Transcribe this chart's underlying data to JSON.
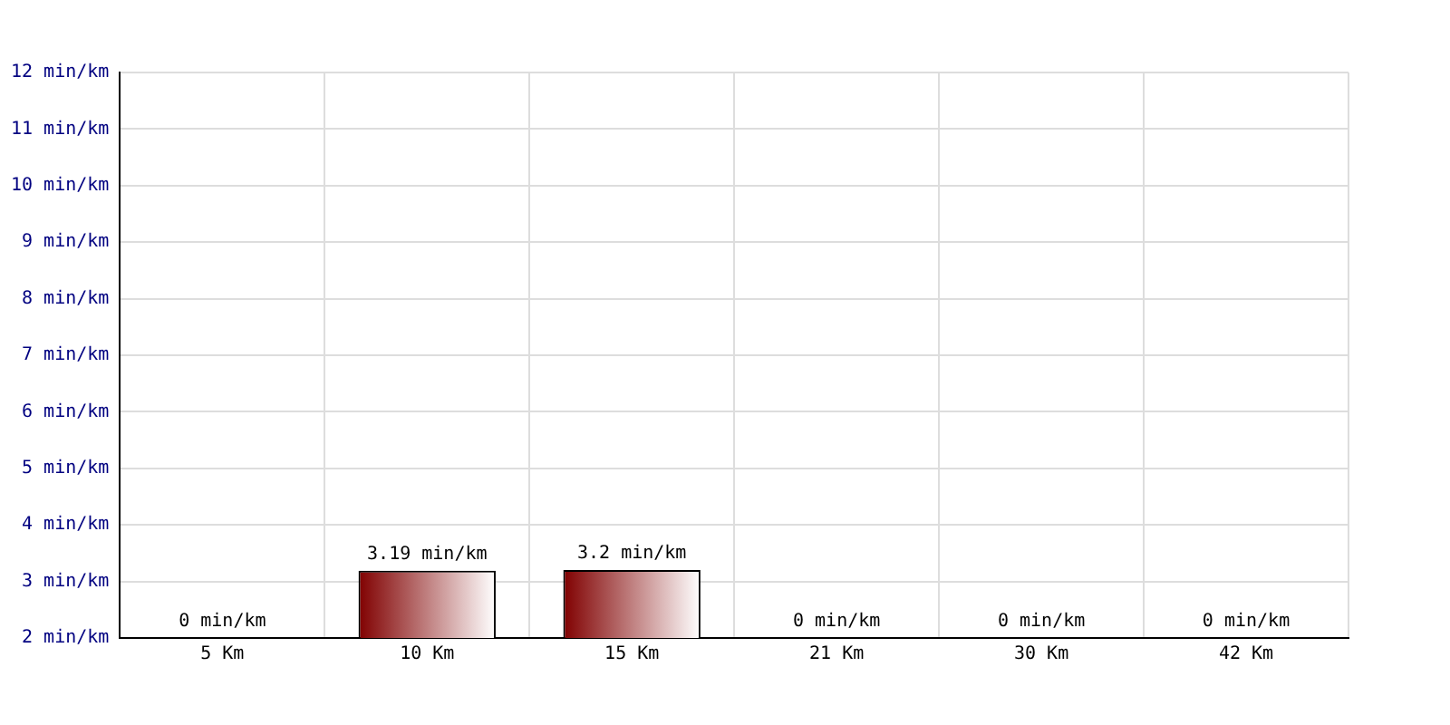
{
  "chart_data": {
    "type": "bar",
    "categories": [
      "5 Km",
      "10 Km",
      "15 Km",
      "21 Km",
      "30 Km",
      "42 Km"
    ],
    "values": [
      null,
      3.19,
      3.2,
      null,
      null,
      null
    ],
    "value_labels": [
      "0 min/km",
      "3.19 min/km",
      "3.2 min/km",
      "0 min/km",
      "0 min/km",
      "0 min/km"
    ],
    "color": "#800000",
    "ylim": [
      2,
      12
    ],
    "yticks": [
      {
        "value": 2,
        "label": "2 min/km"
      },
      {
        "value": 3,
        "label": "3 min/km"
      },
      {
        "value": 4,
        "label": "4 min/km"
      },
      {
        "value": 5,
        "label": "5 min/km"
      },
      {
        "value": 6,
        "label": "6 min/km"
      },
      {
        "value": 7,
        "label": "7 min/km"
      },
      {
        "value": 8,
        "label": "8 min/km"
      },
      {
        "value": 9,
        "label": "9 min/km"
      },
      {
        "value": 10,
        "label": "10 min/km"
      },
      {
        "value": 11,
        "label": "11 min/km"
      },
      {
        "value": 12,
        "label": "12 min/km"
      }
    ],
    "grid": true
  }
}
